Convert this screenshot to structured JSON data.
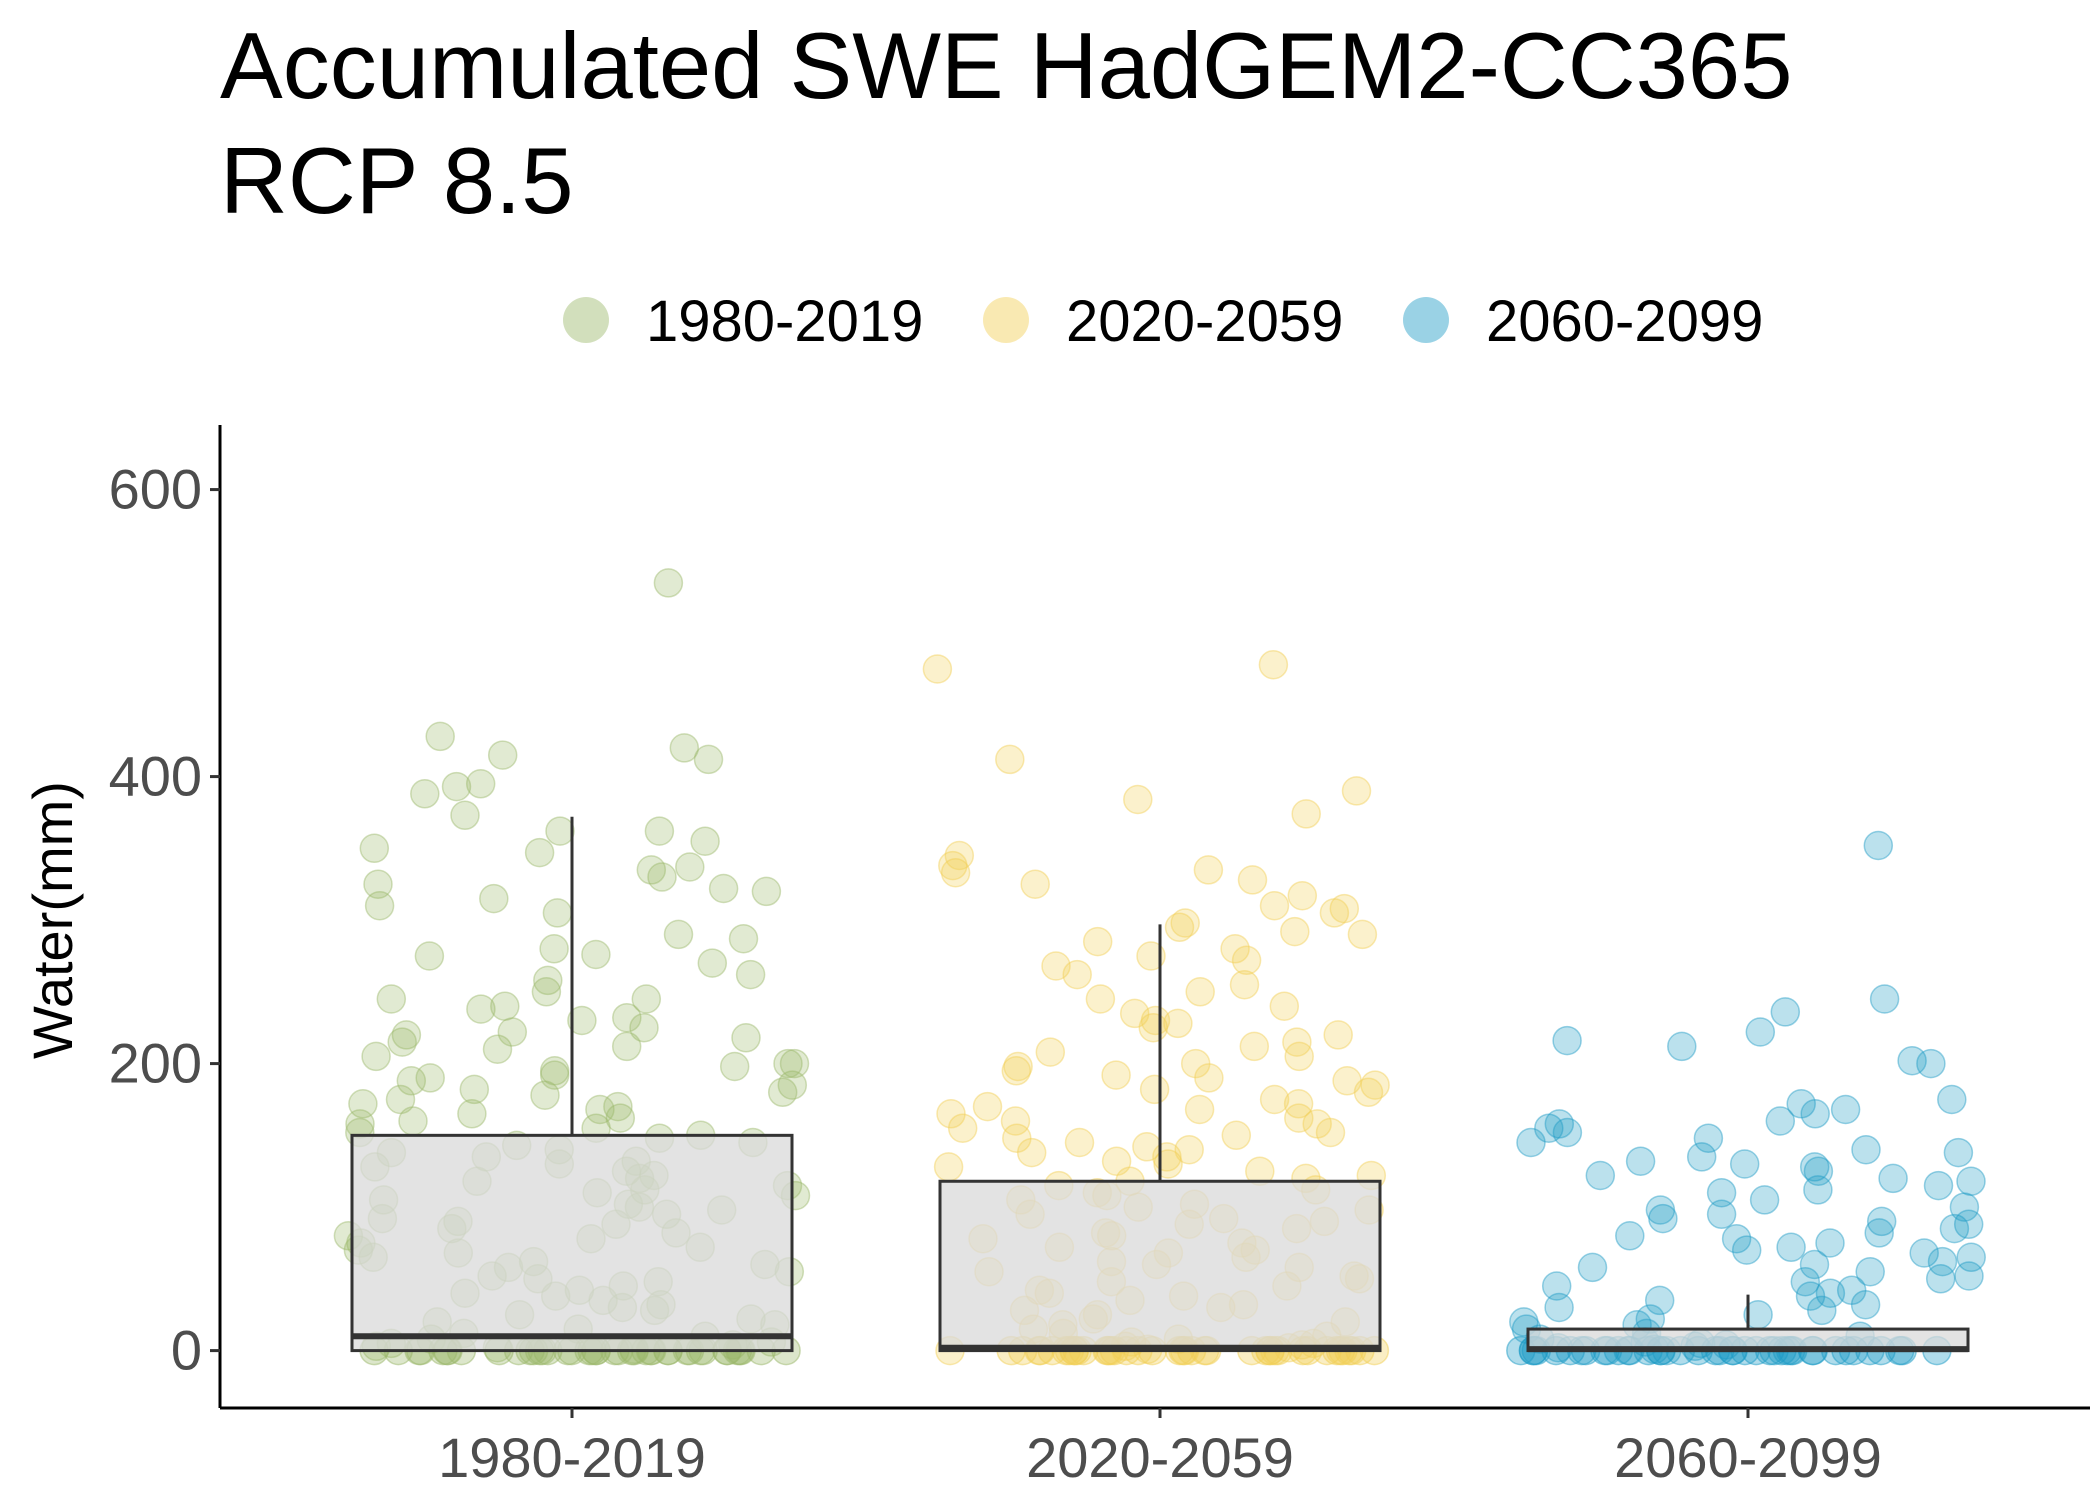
{
  "chart_data": {
    "type": "box+jitter",
    "title_lines": [
      "Accumulated SWE HadGEM2-CC365",
      "RCP 8.5"
    ],
    "xlabel": "",
    "ylabel": "Water(mm)",
    "ylim": [
      -40,
      645
    ],
    "yticks": [
      0,
      200,
      400,
      600
    ],
    "ytick_labels": [
      "0",
      "200",
      "400",
      "600"
    ],
    "categories": [
      "1980-2019",
      "2020-2059",
      "2060-2099"
    ],
    "legend": {
      "position": "top",
      "entries": [
        "1980-2019",
        "2020-2059",
        "2060-2099"
      ]
    },
    "colors": {
      "1980-2019": "#9cb86b",
      "2020-2059": "#f2cf55",
      "2060-2099": "#1e9cc5",
      "box_fill": "#d9d9d9",
      "box_stroke": "#333333"
    },
    "boxes": [
      {
        "category": "1980-2019",
        "lower_whisker": 0,
        "q1": 0,
        "median": 10,
        "q3": 150,
        "upper_whisker": 372
      },
      {
        "category": "2020-2059",
        "lower_whisker": 0,
        "q1": 0,
        "median": 2,
        "q3": 118,
        "upper_whisker": 297
      },
      {
        "category": "2060-2099",
        "lower_whisker": 0,
        "q1": 0,
        "median": 1,
        "q3": 15,
        "upper_whisker": 39
      }
    ],
    "points": [
      {
        "category": "1980-2019",
        "values": [
          535,
          428,
          420,
          415,
          412,
          395,
          393,
          388,
          373,
          362,
          362,
          355,
          350,
          347,
          337,
          335,
          330,
          325,
          322,
          320,
          315,
          310,
          305,
          290,
          287,
          280,
          276,
          275,
          270,
          262,
          258,
          250,
          245,
          245,
          240,
          238,
          232,
          230,
          225,
          222,
          220,
          218,
          215,
          212,
          210,
          205,
          200,
          200,
          198,
          195,
          192,
          190,
          188,
          185,
          182,
          180,
          178,
          175,
          172,
          170,
          168,
          165,
          162,
          160,
          158,
          155,
          152,
          150,
          148,
          145,
          143,
          140,
          138,
          135,
          132,
          130,
          128,
          125,
          122,
          120,
          118,
          115,
          112,
          110,
          108,
          105,
          102,
          100,
          98,
          95,
          92,
          90,
          88,
          85,
          82,
          80,
          78,
          75,
          72,
          70,
          68,
          65,
          62,
          60,
          58,
          55,
          52,
          50,
          48,
          45,
          42,
          40,
          38,
          35,
          32,
          30,
          28,
          25,
          22,
          20,
          18,
          15,
          12,
          10,
          8,
          6,
          5,
          4,
          3,
          2,
          1,
          0
        ]
      },
      {
        "category": "2020-2059",
        "values": [
          478,
          475,
          412,
          390,
          384,
          374,
          345,
          338,
          335,
          333,
          328,
          325,
          317,
          310,
          308,
          305,
          298,
          295,
          292,
          290,
          285,
          280,
          275,
          272,
          268,
          262,
          255,
          250,
          245,
          240,
          235,
          230,
          228,
          225,
          220,
          215,
          212,
          208,
          205,
          200,
          198,
          195,
          192,
          190,
          188,
          185,
          182,
          180,
          175,
          172,
          170,
          168,
          165,
          162,
          160,
          158,
          155,
          152,
          150,
          148,
          145,
          142,
          140,
          138,
          135,
          132,
          130,
          128,
          125,
          122,
          120,
          118,
          115,
          112,
          110,
          108,
          105,
          102,
          100,
          98,
          95,
          92,
          90,
          88,
          85,
          82,
          80,
          78,
          75,
          72,
          70,
          68,
          65,
          62,
          60,
          58,
          55,
          52,
          50,
          48,
          45,
          42,
          40,
          38,
          35,
          32,
          30,
          28,
          25,
          22,
          20,
          18,
          15,
          12,
          10,
          8,
          6,
          5,
          4,
          3,
          2,
          1,
          0
        ]
      },
      {
        "category": "2060-2099",
        "values": [
          352,
          245,
          236,
          222,
          216,
          212,
          202,
          200,
          175,
          172,
          168,
          165,
          160,
          158,
          155,
          152,
          148,
          145,
          140,
          138,
          135,
          132,
          130,
          128,
          125,
          122,
          120,
          118,
          115,
          112,
          110,
          105,
          100,
          98,
          95,
          92,
          90,
          88,
          85,
          82,
          80,
          78,
          75,
          72,
          70,
          68,
          65,
          62,
          60,
          58,
          55,
          52,
          50,
          48,
          45,
          42,
          40,
          38,
          35,
          32,
          30,
          28,
          25,
          22,
          20,
          18,
          15,
          12,
          10,
          8,
          6,
          5,
          4,
          3,
          2,
          1,
          0
        ]
      }
    ]
  }
}
